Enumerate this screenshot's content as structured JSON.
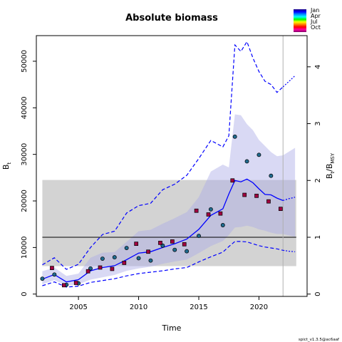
{
  "chart_data": {
    "type": "line",
    "title": "Absolute biomass",
    "xlabel": "Time",
    "ylabel_left": "B_t",
    "ylabel_right": "B_t/B_MSY",
    "footer": "spict_v1.3.5@ac6aaf",
    "xlim": [
      2001.5,
      2024
    ],
    "ylim": [
      -500,
      55500
    ],
    "bmsy": 12200,
    "bmsy_ci": [
      6000,
      24500
    ],
    "bmsy_ci_start": 2002,
    "forecast_start": 2022,
    "x_ticks": [
      2005,
      2010,
      2015,
      2020
    ],
    "y_ticks": [
      0,
      10000,
      20000,
      30000,
      40000,
      50000
    ],
    "y_ticks_right": [
      0,
      1,
      2,
      3,
      4
    ],
    "series": [
      {
        "name": "Estimate",
        "x": [
          2002,
          2003,
          2004,
          2005,
          2006,
          2007,
          2008,
          2009,
          2010,
          2011,
          2012,
          2013,
          2014,
          2015,
          2016,
          2017,
          2017.5,
          2018,
          2018.5,
          2019,
          2019.5,
          2020,
          2020.5,
          2021,
          2021.5,
          2022
        ],
        "y": [
          3200,
          4200,
          2600,
          3100,
          5000,
          5700,
          6100,
          7400,
          8800,
          9100,
          10000,
          10800,
          11800,
          13900,
          16900,
          18300,
          21500,
          24400,
          24100,
          24700,
          23900,
          22600,
          21400,
          21300,
          20600,
          20100
        ]
      },
      {
        "name": "Estimate forecast",
        "x": [
          2022,
          2022.5,
          2023
        ],
        "y": [
          20100,
          20500,
          20800
        ]
      },
      {
        "name": "Estimate lower CI",
        "x": [
          2002,
          2003,
          2004,
          2005,
          2006,
          2007,
          2008,
          2009,
          2010,
          2011,
          2012,
          2013,
          2014,
          2015,
          2016,
          2017,
          2017.5,
          2018,
          2018.5,
          2019,
          2019.5,
          2020,
          2020.5,
          2021,
          2021.5,
          2022
        ],
        "y": [
          1800,
          2600,
          1500,
          1700,
          2500,
          2900,
          3300,
          3900,
          4400,
          4700,
          5000,
          5400,
          5700,
          6900,
          8000,
          9000,
          10200,
          11300,
          11300,
          11200,
          10800,
          10400,
          10100,
          9900,
          9700,
          9400
        ]
      },
      {
        "name": "Estimate upper CI",
        "x": [
          2002,
          2003,
          2004,
          2005,
          2006,
          2007,
          2008,
          2009,
          2010,
          2011,
          2012,
          2013,
          2014,
          2015,
          2016,
          2017,
          2017.5,
          2018,
          2018.5,
          2019,
          2019.5,
          2020,
          2020.5,
          2021,
          2021.5,
          2022
        ],
        "y": [
          6300,
          7800,
          5300,
          6400,
          10000,
          12800,
          13500,
          17400,
          19000,
          19500,
          22400,
          23600,
          25500,
          29100,
          33000,
          31600,
          34000,
          53500,
          52100,
          54200,
          50700,
          47800,
          45700,
          45000,
          43300,
          44500
        ]
      },
      {
        "name": "Forecast lower CI",
        "x": [
          2022,
          2022.5,
          2023
        ],
        "y": [
          9400,
          9200,
          9100
        ]
      },
      {
        "name": "Forecast upper CI",
        "x": [
          2022,
          2022.5,
          2023
        ],
        "y": [
          44500,
          45700,
          46900
        ]
      },
      {
        "name": "Shaded band",
        "x": [
          2002,
          2003,
          2004,
          2005,
          2006,
          2007,
          2008,
          2009,
          2010,
          2011,
          2012,
          2013,
          2014,
          2015,
          2016,
          2017,
          2017.5,
          2018,
          2018.5,
          2019,
          2019.5,
          2020,
          2020.5,
          2021,
          2021.5,
          2022,
          2022.5,
          2023
        ],
        "lower": [
          2100,
          3000,
          1800,
          2100,
          3100,
          3600,
          4100,
          5000,
          5500,
          5900,
          6500,
          7000,
          7400,
          8800,
          10300,
          11400,
          12700,
          14300,
          14400,
          14700,
          14400,
          13900,
          13600,
          13200,
          12900,
          12900,
          12600,
          12300
        ],
        "upper": [
          4900,
          5700,
          3900,
          4400,
          7800,
          8900,
          9000,
          11200,
          13500,
          13800,
          15100,
          16300,
          17600,
          20800,
          26300,
          27800,
          27200,
          38600,
          38400,
          36500,
          35200,
          33100,
          31800,
          30500,
          29600,
          29800,
          30600,
          31400
        ]
      }
    ],
    "observations": [
      {
        "name": "Index Q1",
        "x": [
          2002,
          2003,
          2004,
          2005,
          2006,
          2007,
          2008,
          2009,
          2010,
          2011,
          2012,
          2013,
          2014,
          2015,
          2016,
          2017,
          2018,
          2019,
          2020,
          2021
        ],
        "y": [
          3300,
          4200,
          2000,
          2300,
          5500,
          7600,
          7900,
          9900,
          7700,
          7200,
          10400,
          9500,
          9200,
          12500,
          18200,
          14800,
          33800,
          28500,
          29900,
          25400
        ]
      },
      {
        "name": "Index Q3",
        "x": [
          2002.8,
          2003.8,
          2004.8,
          2005.8,
          2006.8,
          2007.8,
          2008.8,
          2009.8,
          2010.8,
          2011.8,
          2012.8,
          2013.8,
          2014.8,
          2015.8,
          2016.8,
          2017.8,
          2018.8,
          2019.8,
          2020.8,
          2021.8
        ],
        "y": [
          5600,
          1900,
          2400,
          4900,
          5700,
          5400,
          6700,
          10800,
          9100,
          11000,
          11300,
          10700,
          17900,
          17100,
          17300,
          24400,
          21300,
          21100,
          19900,
          18300
        ]
      }
    ],
    "legend": {
      "labels": [
        "Jan",
        "Apr",
        "Jul",
        "Oct"
      ],
      "placement": "top-right"
    },
    "colors": {
      "estimate": "#0000ff",
      "band": "#e3e3ff",
      "band_inner": "#aaaae6",
      "bmsy_band": "#d3d3d3",
      "point_q1": "#1f6b8f",
      "point_q3": "#a00040",
      "legend_gradient": [
        "#1a0080",
        "#0000ff",
        "#0090ff",
        "#00ffff",
        "#00ff00",
        "#ffff00",
        "#ff8000",
        "#ff0000",
        "#ff00a0",
        "#80006a"
      ]
    }
  }
}
